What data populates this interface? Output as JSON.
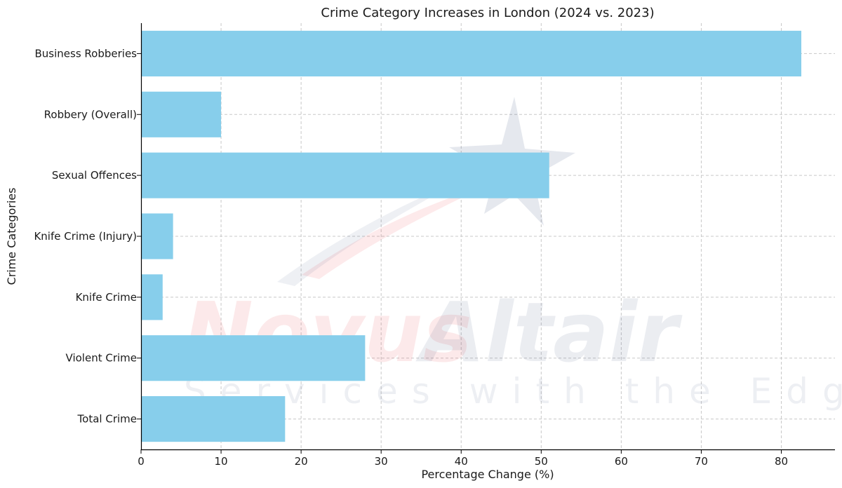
{
  "watermark": {
    "brand_1": "Novus",
    "brand_2": "Altair",
    "tagline": "Services with the Edge",
    "colors": {
      "red": "#e8343a",
      "navy": "#2b3f73"
    }
  },
  "chart_data": {
    "type": "bar",
    "orientation": "horizontal",
    "title": "Crime Category Increases in London (2024 vs. 2023)",
    "xlabel": "Percentage Change (%)",
    "ylabel": "Crime Categories",
    "categories": [
      "Total Crime",
      "Violent Crime",
      "Knife Crime",
      "Knife Crime (Injury)",
      "Sexual Offences",
      "Robbery (Overall)",
      "Business Robberies"
    ],
    "values": [
      18,
      28,
      2.7,
      4,
      51,
      10,
      82.5
    ],
    "xlim": [
      0,
      87
    ],
    "xticks": [
      0,
      10,
      20,
      30,
      40,
      50,
      60,
      70,
      80
    ],
    "grid": true,
    "legend": "none",
    "bar_color": "#87CEEB"
  }
}
